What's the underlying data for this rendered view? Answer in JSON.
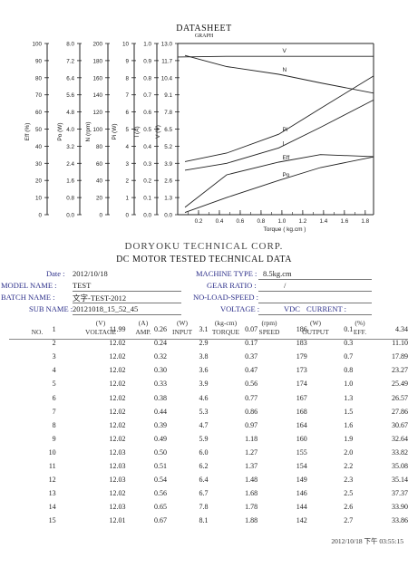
{
  "header": {
    "title": "DATASHEET",
    "subtitle": "GRAPH"
  },
  "chart_data": {
    "type": "line",
    "xlabel": "Torque ( kg.cm )",
    "x_ticks": [
      "0.2",
      "0.4",
      "0.6",
      "0.8",
      "1.0",
      "1.2",
      "1.4",
      "1.6",
      "1.8"
    ],
    "xlim": [
      0,
      1.88
    ],
    "axes": [
      {
        "label": "Eff (%)",
        "ticks": [
          "0",
          "10",
          "20",
          "30",
          "40",
          "50",
          "60",
          "70",
          "80",
          "90",
          "100"
        ]
      },
      {
        "label": "Po (W)",
        "ticks": [
          "0.0",
          "0.8",
          "1.6",
          "2.4",
          "3.2",
          "4.0",
          "4.8",
          "5.6",
          "6.4",
          "7.2",
          "8.0"
        ]
      },
      {
        "label": "N (rpm)",
        "ticks": [
          "0",
          "20",
          "40",
          "60",
          "80",
          "100",
          "120",
          "140",
          "160",
          "180",
          "200"
        ]
      },
      {
        "label": "Pi (W)",
        "ticks": [
          "0",
          "1",
          "2",
          "3",
          "4",
          "5",
          "6",
          "7",
          "8",
          "9",
          "10"
        ]
      },
      {
        "label": "I (A)",
        "ticks": [
          "0.0",
          "0.1",
          "0.2",
          "0.3",
          "0.4",
          "0.5",
          "0.6",
          "0.7",
          "0.8",
          "0.9",
          "1.0"
        ]
      },
      {
        "label": "V (V)",
        "ticks": [
          "0.0",
          "1.3",
          "2.6",
          "3.9",
          "5.2",
          "6.5",
          "7.8",
          "9.1",
          "10.4",
          "11.7",
          "13.0"
        ]
      }
    ],
    "grid": false,
    "series": [
      {
        "name": "V",
        "y_ratio": [
          0.921,
          0.925,
          0.925,
          0.925,
          0.925
        ]
      },
      {
        "name": "N",
        "x": [
          0.07,
          0.47,
          0.97,
          1.37,
          1.88
        ],
        "y_ratio": [
          0.93,
          0.865,
          0.82,
          0.77,
          0.71
        ]
      },
      {
        "name": "Pi",
        "x": [
          0.07,
          0.47,
          0.97,
          1.37,
          1.88
        ],
        "y_ratio": [
          0.31,
          0.36,
          0.47,
          0.62,
          0.81
        ]
      },
      {
        "name": "I",
        "x": [
          0.07,
          0.47,
          0.97,
          1.37,
          1.88
        ],
        "y_ratio": [
          0.26,
          0.3,
          0.39,
          0.51,
          0.67
        ]
      },
      {
        "name": "Eff",
        "x": [
          0.07,
          0.47,
          0.97,
          1.37,
          1.88
        ],
        "y_ratio": [
          0.043,
          0.233,
          0.307,
          0.351,
          0.339
        ]
      },
      {
        "name": "Po",
        "x": [
          0.07,
          0.47,
          0.97,
          1.37,
          1.88
        ],
        "y_ratio": [
          0.0125,
          0.1,
          0.2,
          0.275,
          0.3375
        ]
      }
    ]
  },
  "company": "DORYOKU TECHNICAL CORP.",
  "report_title": "DC MOTOR TESTED TECHNICAL DATA",
  "info": {
    "date_label": "Date :",
    "date": "2012/10/18",
    "model_label": "MODEL NAME :",
    "model": "TEST",
    "batch_label": "BATCH NAME :",
    "batch": "文字-TEST-2012",
    "sub_label": "SUB NAME :",
    "sub": "20121018_15_52_45",
    "machine_label": "MACHINE TYPE :",
    "machine": "8.5kg.cm",
    "gear_label": "GEAR RATIO :",
    "gear": "/",
    "noload_label": "NO-LOAD-SPEED :",
    "noload": "",
    "voltage_label": "VOLTAGE :",
    "voltage": "VDC",
    "current_label": "CURRENT :",
    "current": ""
  },
  "table": {
    "units": [
      "",
      "(V)",
      "(A)",
      "(W)",
      "(kg-cm)",
      "(rpm)",
      "(W)",
      "(%)"
    ],
    "headers": [
      "NO.",
      "VOLTAGE",
      "AMP.",
      "INPUT",
      "TORQUE",
      "SPEED",
      "OUTPUT",
      "EFF."
    ],
    "rows": [
      [
        "1",
        "11.99",
        "0.26",
        "3.1",
        "0.07",
        "186",
        "0.1",
        "4.34"
      ],
      [
        "2",
        "12.02",
        "0.24",
        "2.9",
        "0.17",
        "183",
        "0.3",
        "11.10"
      ],
      [
        "3",
        "12.02",
        "0.32",
        "3.8",
        "0.37",
        "179",
        "0.7",
        "17.89"
      ],
      [
        "4",
        "12.02",
        "0.30",
        "3.6",
        "0.47",
        "173",
        "0.8",
        "23.27"
      ],
      [
        "5",
        "12.02",
        "0.33",
        "3.9",
        "0.56",
        "174",
        "1.0",
        "25.49"
      ],
      [
        "6",
        "12.02",
        "0.38",
        "4.6",
        "0.77",
        "167",
        "1.3",
        "26.57"
      ],
      [
        "7",
        "12.02",
        "0.44",
        "5.3",
        "0.86",
        "168",
        "1.5",
        "27.86"
      ],
      [
        "8",
        "12.02",
        "0.39",
        "4.7",
        "0.97",
        "164",
        "1.6",
        "30.67"
      ],
      [
        "9",
        "12.02",
        "0.49",
        "5.9",
        "1.18",
        "160",
        "1.9",
        "32.64"
      ],
      [
        "10",
        "12.03",
        "0.50",
        "6.0",
        "1.27",
        "155",
        "2.0",
        "33.82"
      ],
      [
        "11",
        "12.03",
        "0.51",
        "6.2",
        "1.37",
        "154",
        "2.2",
        "35.08"
      ],
      [
        "12",
        "12.03",
        "0.54",
        "6.4",
        "1.48",
        "149",
        "2.3",
        "35.14"
      ],
      [
        "13",
        "12.02",
        "0.56",
        "6.7",
        "1.68",
        "146",
        "2.5",
        "37.37"
      ],
      [
        "14",
        "12.03",
        "0.65",
        "7.8",
        "1.78",
        "144",
        "2.6",
        "33.90"
      ],
      [
        "15",
        "12.01",
        "0.67",
        "8.1",
        "1.88",
        "142",
        "2.7",
        "33.86"
      ]
    ]
  },
  "timestamp": "2012/10/18 下午 03:55:15"
}
